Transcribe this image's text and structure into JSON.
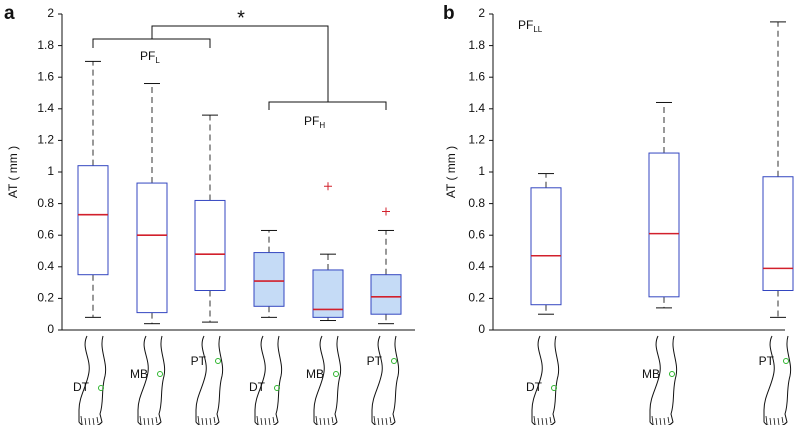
{
  "chart_data": [
    {
      "type": "box",
      "panel_label": "a",
      "ylabel": "AT ( mm )",
      "categories": [
        "DT",
        "MB",
        "PT",
        "DT",
        "MB",
        "PT"
      ],
      "filled": [
        false,
        false,
        false,
        true,
        true,
        true
      ],
      "box_color": "#3346c0",
      "fill_color": "#c5dbf6",
      "median_color": "#d2202c",
      "outlier_color": "#d2202c",
      "boxes": [
        {
          "low": 0.08,
          "q1": 0.35,
          "median": 0.73,
          "q3": 1.04,
          "high": 1.7,
          "outliers": []
        },
        {
          "low": 0.04,
          "q1": 0.11,
          "median": 0.6,
          "q3": 0.93,
          "high": 1.56,
          "outliers": []
        },
        {
          "low": 0.05,
          "q1": 0.25,
          "median": 0.48,
          "q3": 0.82,
          "high": 1.36,
          "outliers": []
        },
        {
          "low": 0.08,
          "q1": 0.15,
          "median": 0.31,
          "q3": 0.49,
          "high": 0.63,
          "outliers": []
        },
        {
          "low": 0.06,
          "q1": 0.08,
          "median": 0.13,
          "q3": 0.38,
          "high": 0.48,
          "outliers": [
            0.91
          ]
        },
        {
          "low": 0.04,
          "q1": 0.1,
          "median": 0.21,
          "q3": 0.35,
          "high": 0.63,
          "outliers": [
            0.75
          ]
        }
      ],
      "ylim": [
        0,
        2
      ],
      "yticks": [
        0,
        0.2,
        0.4,
        0.6,
        0.8,
        1,
        1.2,
        1.4,
        1.6,
        1.8,
        2
      ],
      "annotations": [
        {
          "text": "PF",
          "sub": "L"
        },
        {
          "text": "PF",
          "sub": "H"
        },
        {
          "text": "*"
        }
      ]
    },
    {
      "type": "box",
      "panel_label": "b",
      "ylabel": "AT ( mm )",
      "categories": [
        "DT",
        "MB",
        "PT"
      ],
      "filled": [
        false,
        false,
        false
      ],
      "box_color": "#3346c0",
      "fill_color": "#c5dbf6",
      "median_color": "#d2202c",
      "outlier_color": "#d2202c",
      "boxes": [
        {
          "low": 0.1,
          "q1": 0.16,
          "median": 0.47,
          "q3": 0.9,
          "high": 0.99,
          "outliers": []
        },
        {
          "low": 0.14,
          "q1": 0.21,
          "median": 0.61,
          "q3": 1.12,
          "high": 1.44,
          "outliers": []
        },
        {
          "low": 0.08,
          "q1": 0.25,
          "median": 0.39,
          "q3": 0.97,
          "high": 1.95,
          "outliers": []
        }
      ],
      "ylim": [
        0,
        2
      ],
      "yticks": [
        0,
        0.2,
        0.4,
        0.6,
        0.8,
        1,
        1.2,
        1.4,
        1.6,
        1.8,
        2
      ],
      "annotations": [
        {
          "text": "PF",
          "sub": "LL"
        }
      ]
    }
  ]
}
